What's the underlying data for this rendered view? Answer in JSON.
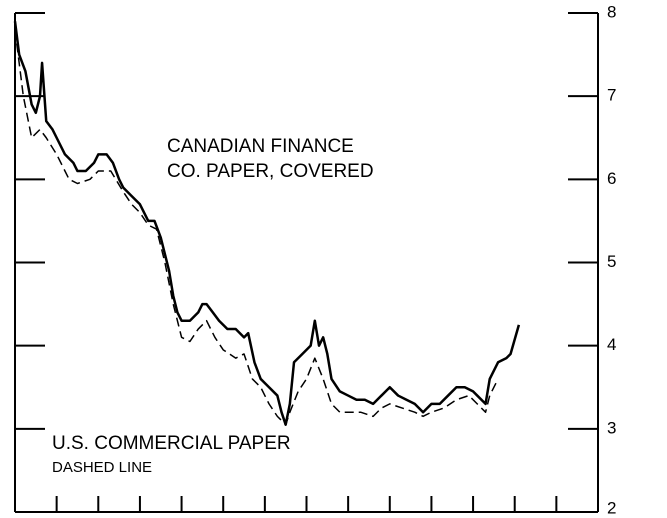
{
  "chart_data": {
    "type": "line",
    "annotations": [
      "CANADIAN FINANCE",
      "CO. PAPER, COVERED",
      "U.S. COMMERCIAL PAPER",
      "DASHED LINE"
    ],
    "xlim": [
      0,
      14
    ],
    "xticks": [
      0,
      1,
      2,
      3,
      4,
      5,
      6,
      7,
      8,
      9,
      10,
      11,
      12,
      13,
      14
    ],
    "ylim": [
      2,
      8
    ],
    "yticks": [
      2,
      3,
      4,
      5,
      6,
      7,
      8
    ],
    "series": [
      {
        "color": "#000000",
        "dash": false,
        "x": [
          0,
          0.1,
          0.25,
          0.4,
          0.5,
          0.6,
          0.65,
          0.75,
          0.9,
          1.0,
          1.2,
          1.4,
          1.5,
          1.7,
          1.9,
          2.0,
          2.2,
          2.35,
          2.5,
          2.6,
          2.8,
          3.0,
          3.2,
          3.35,
          3.5,
          3.6,
          3.7,
          3.8,
          3.9,
          4.0,
          4.2,
          4.4,
          4.5,
          4.6,
          4.75,
          4.9,
          5.1,
          5.3,
          5.5,
          5.6,
          5.75,
          5.9,
          6.1,
          6.3,
          6.4,
          6.5,
          6.6,
          6.7,
          6.9,
          7.1,
          7.2,
          7.3,
          7.4,
          7.5,
          7.6,
          7.8,
          8.0,
          8.2,
          8.4,
          8.6,
          8.8,
          9.0,
          9.2,
          9.4,
          9.6,
          9.8,
          10.0,
          10.2,
          10.4,
          10.6,
          10.8,
          11.0,
          11.1,
          11.3,
          11.4,
          11.6,
          11.8,
          11.9,
          12.1
        ],
        "values": [
          7.9,
          7.5,
          7.3,
          6.9,
          6.8,
          7.0,
          7.4,
          6.7,
          6.6,
          6.5,
          6.3,
          6.2,
          6.1,
          6.1,
          6.2,
          6.3,
          6.3,
          6.2,
          6.0,
          5.9,
          5.8,
          5.7,
          5.5,
          5.5,
          5.3,
          5.1,
          4.9,
          4.6,
          4.4,
          4.3,
          4.3,
          4.4,
          4.5,
          4.5,
          4.4,
          4.3,
          4.2,
          4.2,
          4.1,
          4.15,
          3.8,
          3.6,
          3.5,
          3.4,
          3.2,
          3.05,
          3.3,
          3.8,
          3.9,
          4.0,
          4.3,
          4.0,
          4.1,
          3.9,
          3.6,
          3.45,
          3.4,
          3.35,
          3.35,
          3.3,
          3.4,
          3.5,
          3.4,
          3.35,
          3.3,
          3.2,
          3.3,
          3.3,
          3.4,
          3.5,
          3.5,
          3.45,
          3.4,
          3.3,
          3.6,
          3.8,
          3.85,
          3.9,
          4.25
        ]
      },
      {
        "color": "#000000",
        "dash": true,
        "x": [
          0,
          0.2,
          0.4,
          0.6,
          0.75,
          1.0,
          1.3,
          1.5,
          1.8,
          2.0,
          2.3,
          2.6,
          2.8,
          3.0,
          3.2,
          3.4,
          3.6,
          3.8,
          4.0,
          4.2,
          4.4,
          4.6,
          4.8,
          5.0,
          5.3,
          5.5,
          5.7,
          5.9,
          6.1,
          6.3,
          6.5,
          6.6,
          6.8,
          7.0,
          7.2,
          7.4,
          7.6,
          7.8,
          8.0,
          8.3,
          8.6,
          8.8,
          9.0,
          9.3,
          9.6,
          9.8,
          10.0,
          10.3,
          10.6,
          10.9,
          11.1,
          11.3,
          11.4,
          11.6
        ],
        "values": [
          7.8,
          7.0,
          6.5,
          6.6,
          6.5,
          6.3,
          6.0,
          5.95,
          6.0,
          6.1,
          6.1,
          5.85,
          5.7,
          5.6,
          5.45,
          5.4,
          5.0,
          4.5,
          4.1,
          4.05,
          4.2,
          4.3,
          4.1,
          3.95,
          3.85,
          3.9,
          3.6,
          3.5,
          3.3,
          3.15,
          3.05,
          3.2,
          3.45,
          3.6,
          3.85,
          3.6,
          3.3,
          3.2,
          3.2,
          3.2,
          3.15,
          3.25,
          3.3,
          3.25,
          3.2,
          3.15,
          3.2,
          3.25,
          3.35,
          3.4,
          3.3,
          3.2,
          3.4,
          3.6
        ]
      }
    ]
  }
}
